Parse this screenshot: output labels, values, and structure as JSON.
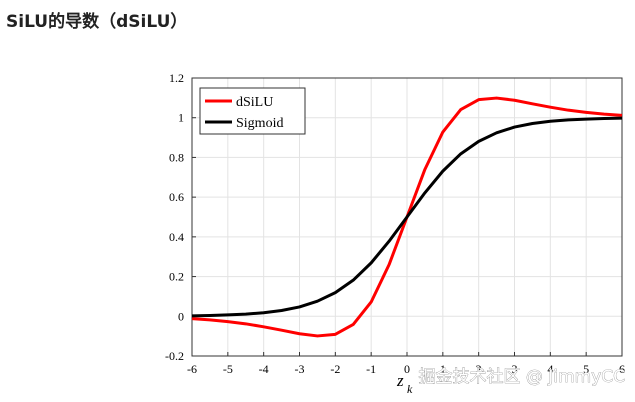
{
  "chart_data": {
    "type": "line",
    "title": "SiLU的导数（dSiLU）",
    "x": [
      -6,
      -5.5,
      -5,
      -4.5,
      -4,
      -3.5,
      -3,
      -2.5,
      -2,
      -1.5,
      -1,
      -0.5,
      0,
      0.5,
      1,
      1.5,
      2,
      2.5,
      3,
      3.5,
      4,
      4.5,
      5,
      5.5,
      6
    ],
    "series": [
      {
        "name": "dSiLU",
        "color": "#ff0000",
        "values": [
          -0.012,
          -0.018,
          -0.027,
          -0.038,
          -0.053,
          -0.07,
          -0.088,
          -0.099,
          -0.091,
          -0.041,
          0.072,
          0.26,
          0.5,
          0.74,
          0.928,
          1.041,
          1.091,
          1.099,
          1.088,
          1.07,
          1.053,
          1.038,
          1.027,
          1.018,
          1.012
        ]
      },
      {
        "name": "Sigmoid",
        "color": "#000000",
        "values": [
          0.002,
          0.004,
          0.007,
          0.011,
          0.018,
          0.029,
          0.047,
          0.076,
          0.119,
          0.182,
          0.269,
          0.378,
          0.5,
          0.622,
          0.731,
          0.818,
          0.881,
          0.924,
          0.953,
          0.971,
          0.982,
          0.989,
          0.993,
          0.996,
          0.998
        ]
      }
    ],
    "xlim": [
      -6,
      6
    ],
    "xticks": [
      -6,
      -5,
      -4,
      -3,
      -2,
      -1,
      0,
      1,
      2,
      3,
      4,
      5,
      6
    ],
    "ylim": [
      -0.2,
      1.2
    ],
    "yticks": [
      -0.2,
      0,
      0.2,
      0.4,
      0.6,
      0.8,
      1,
      1.2
    ],
    "xlabel": "z",
    "xlabel_subscript": "k",
    "grid": true,
    "legend": "upper-left",
    "watermark": "掘金技术社区 @ JimmyCC"
  }
}
